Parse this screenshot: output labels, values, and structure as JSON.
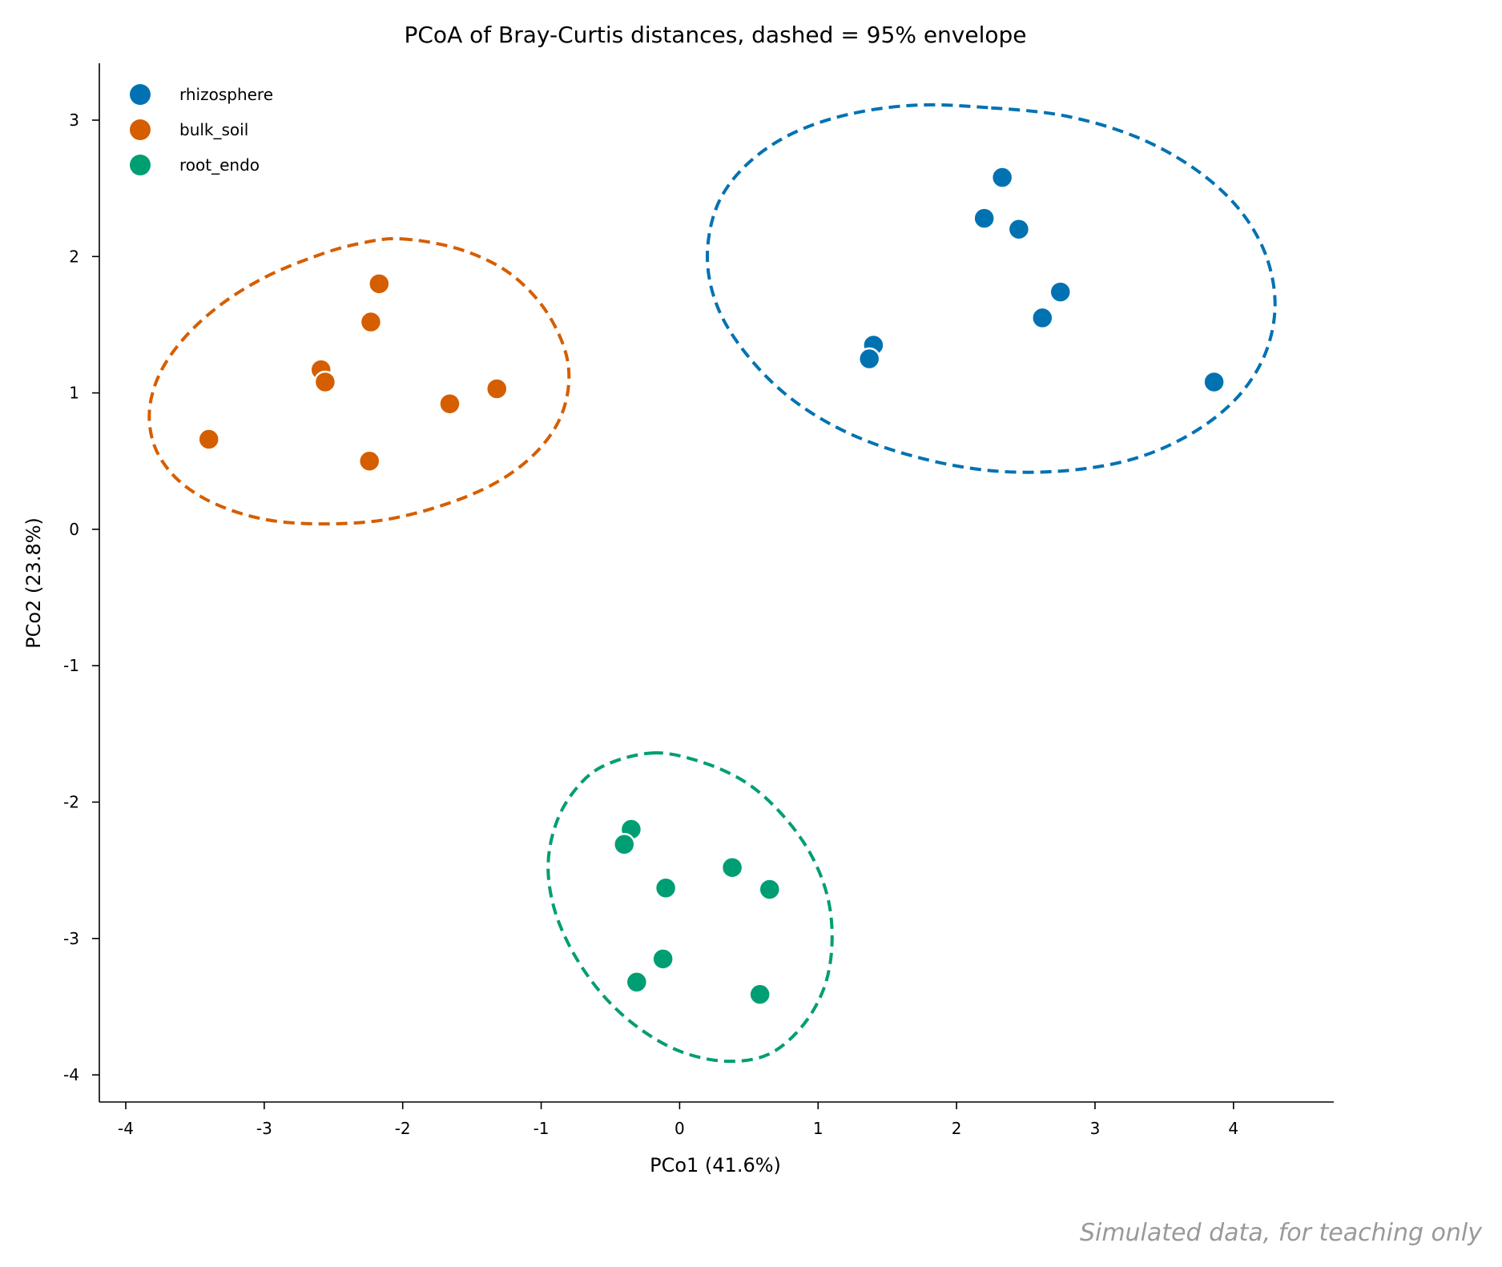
{
  "chart_data": {
    "type": "scatter",
    "title": "PCoA of Bray-Curtis distances, dashed = 95% envelope",
    "xlabel": "PCo1 (41.6%)",
    "ylabel": "PCo2 (23.8%)",
    "xlim": [
      -4.2,
      4.7
    ],
    "ylim": [
      -4.2,
      3.4
    ],
    "xticks": [
      -4,
      -3,
      -2,
      -1,
      0,
      1,
      2,
      3,
      4
    ],
    "yticks": [
      -4,
      -3,
      -2,
      -1,
      0,
      1,
      2,
      3
    ],
    "xtick_labels": [
      "-4",
      "-3",
      "-2",
      "-1",
      "0",
      "1",
      "2",
      "3",
      "4"
    ],
    "ytick_labels": [
      "-4",
      "-3",
      "-2",
      "-1",
      "0",
      "1",
      "2",
      "3"
    ],
    "grid": false,
    "legend_position": "top-left",
    "series": [
      {
        "name": "rhizosphere",
        "color": "#0072B2",
        "points": [
          [
            2.33,
            2.58
          ],
          [
            2.2,
            2.28
          ],
          [
            2.45,
            2.2
          ],
          [
            2.75,
            1.74
          ],
          [
            2.62,
            1.55
          ],
          [
            1.4,
            1.35
          ],
          [
            1.37,
            1.25
          ],
          [
            3.86,
            1.08
          ]
        ],
        "envelope": [
          [
            2.25,
            3.09
          ],
          [
            2.79,
            3.03
          ],
          [
            3.29,
            2.88
          ],
          [
            3.71,
            2.65
          ],
          [
            4.03,
            2.36
          ],
          [
            4.23,
            2.02
          ],
          [
            4.3,
            1.65
          ],
          [
            4.23,
            1.29
          ],
          [
            4.03,
            0.97
          ],
          [
            3.71,
            0.71
          ],
          [
            3.29,
            0.52
          ],
          [
            2.79,
            0.43
          ],
          [
            2.25,
            0.43
          ],
          [
            1.71,
            0.53
          ],
          [
            1.21,
            0.71
          ],
          [
            0.79,
            0.97
          ],
          [
            0.47,
            1.3
          ],
          [
            0.27,
            1.64
          ],
          [
            0.2,
            2.0
          ],
          [
            0.27,
            2.37
          ],
          [
            0.47,
            2.66
          ],
          [
            0.79,
            2.89
          ],
          [
            1.21,
            3.04
          ],
          [
            1.71,
            3.11
          ]
        ]
      },
      {
        "name": "bulk_soil",
        "color": "#D55E00",
        "points": [
          [
            -2.17,
            1.8
          ],
          [
            -2.23,
            1.52
          ],
          [
            -2.59,
            1.17
          ],
          [
            -2.56,
            1.08
          ],
          [
            -1.66,
            0.92
          ],
          [
            -1.32,
            1.03
          ],
          [
            -3.4,
            0.66
          ],
          [
            -2.24,
            0.5
          ]
        ],
        "envelope": [
          [
            -2.01,
            2.13
          ],
          [
            -1.61,
            2.06
          ],
          [
            -1.26,
            1.9
          ],
          [
            -1.0,
            1.65
          ],
          [
            -0.84,
            1.35
          ],
          [
            -0.8,
            1.08
          ],
          [
            -0.87,
            0.8
          ],
          [
            -1.05,
            0.55
          ],
          [
            -1.33,
            0.34
          ],
          [
            -1.7,
            0.18
          ],
          [
            -2.13,
            0.07
          ],
          [
            -2.57,
            0.04
          ],
          [
            -2.98,
            0.07
          ],
          [
            -3.34,
            0.18
          ],
          [
            -3.61,
            0.35
          ],
          [
            -3.78,
            0.58
          ],
          [
            -3.83,
            0.85
          ],
          [
            -3.76,
            1.13
          ],
          [
            -3.58,
            1.4
          ],
          [
            -3.31,
            1.65
          ],
          [
            -2.97,
            1.86
          ],
          [
            -2.58,
            2.02
          ],
          [
            -2.29,
            2.1
          ]
        ]
      },
      {
        "name": "root_endo",
        "color": "#009E73",
        "points": [
          [
            -0.35,
            -2.2
          ],
          [
            -0.4,
            -2.31
          ],
          [
            0.38,
            -2.48
          ],
          [
            -0.1,
            -2.63
          ],
          [
            0.65,
            -2.64
          ],
          [
            -0.12,
            -3.15
          ],
          [
            -0.31,
            -3.32
          ],
          [
            0.58,
            -3.41
          ]
        ],
        "envelope": [
          [
            -0.2,
            -1.64
          ],
          [
            0.14,
            -1.7
          ],
          [
            0.47,
            -1.85
          ],
          [
            0.73,
            -2.08
          ],
          [
            0.94,
            -2.37
          ],
          [
            1.07,
            -2.7
          ],
          [
            1.1,
            -3.05
          ],
          [
            1.04,
            -3.37
          ],
          [
            0.88,
            -3.65
          ],
          [
            0.64,
            -3.85
          ],
          [
            0.34,
            -3.9
          ],
          [
            0.01,
            -3.83
          ],
          [
            -0.29,
            -3.66
          ],
          [
            -0.55,
            -3.42
          ],
          [
            -0.76,
            -3.12
          ],
          [
            -0.9,
            -2.8
          ],
          [
            -0.95,
            -2.48
          ],
          [
            -0.9,
            -2.18
          ],
          [
            -0.77,
            -1.93
          ],
          [
            -0.56,
            -1.74
          ]
        ]
      }
    ]
  },
  "watermark": "Simulated data, for teaching only"
}
